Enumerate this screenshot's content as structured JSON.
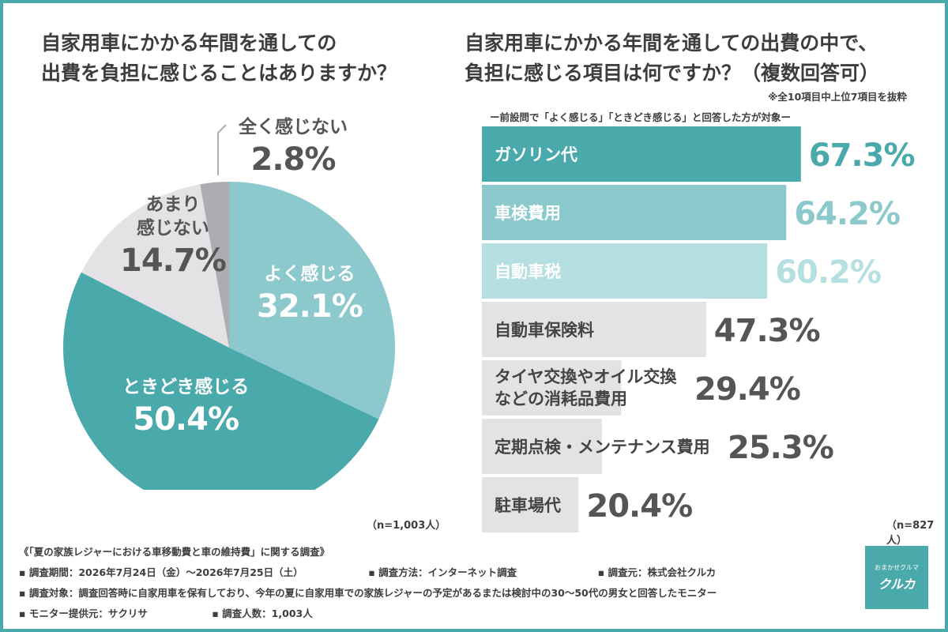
{
  "left_title": [
    "自家用車にかかる年間を通しての",
    "出費を負担に感じることはありますか？"
  ],
  "right_title": [
    "自家用車にかかる年間を通しての出費の中で、",
    "負担に感じる項目は何ですか？（複数回答可）"
  ],
  "note_top": "※全10項目中上位7項目を抜粋",
  "note_target": "ー前設問で「よく感じる」「ときどき感じる」と回答した方が対象ー",
  "colors": {
    "teal_dark": "#4aa9ab",
    "teal_mid": "#8cc9cc",
    "teal_light": "#b5dfe1",
    "gray_light": "#e4e2e5",
    "gray_mid": "#aeacb0",
    "frame": "#4aa9ab"
  },
  "chart_data": [
    {
      "type": "pie",
      "start": "12 o'clock, clockwise",
      "slices": [
        {
          "label": "よく感じる",
          "value": 32.1,
          "value_text": "32.1%",
          "color": "#8cc9cc"
        },
        {
          "label": "ときどき感じる",
          "value": 50.4,
          "value_text": "50.4%",
          "color": "#4aa9ab"
        },
        {
          "label_lines": [
            "あまり",
            "感じない"
          ],
          "value": 14.7,
          "value_text": "14.7%",
          "color": "#e4e2e5"
        },
        {
          "label": "全く感じない",
          "value": 2.8,
          "value_text": "2.8%",
          "color": "#aeacb0"
        }
      ],
      "sample": "（n=1,003人）"
    },
    {
      "type": "bar",
      "orientation": "horizontal",
      "xlim": [
        0,
        100
      ],
      "categories": [
        {
          "lines": [
            "ガソリン代"
          ],
          "value": 67.3,
          "value_text": "67.3%",
          "color": "#4aa9ab",
          "text_color": "#ffffff",
          "value_color": "#4aa9ab"
        },
        {
          "lines": [
            "車検費用"
          ],
          "value": 64.2,
          "value_text": "64.2%",
          "color": "#8cc9cc",
          "text_color": "#ffffff",
          "value_color": "#8cc9cc"
        },
        {
          "lines": [
            "自動車税"
          ],
          "value": 60.2,
          "value_text": "60.2%",
          "color": "#b5dfe1",
          "text_color": "#ffffff",
          "value_color": "#b5dfe1"
        },
        {
          "lines": [
            "自動車保険料"
          ],
          "value": 47.3,
          "value_text": "47.3%",
          "color": "#e4e2e5",
          "text_color": "#444444",
          "value_color": "#555555"
        },
        {
          "lines": [
            "タイヤ交換やオイル交換",
            "などの消耗品費用"
          ],
          "value": 29.4,
          "value_text": "29.4%",
          "color": "#e4e2e5",
          "text_color": "#444444",
          "value_color": "#555555"
        },
        {
          "lines": [
            "定期点検・メンテナンス費用"
          ],
          "value": 25.3,
          "value_text": "25.3%",
          "color": "#e4e2e5",
          "text_color": "#444444",
          "value_color": "#555555"
        },
        {
          "lines": [
            "駐車場代"
          ],
          "value": 20.4,
          "value_text": "20.4%",
          "color": "#e4e2e5",
          "text_color": "#444444",
          "value_color": "#555555"
        }
      ],
      "sample": "（n=827人）"
    }
  ],
  "footer": {
    "survey_title": "《「夏の家族レジャーにおける車移動費と車の維持費」に関する調査》",
    "period": "▪ 調査期間：2026年7月24日（金）〜2026年7月25日（土）",
    "method": "▪ 調査方法：インターネット調査",
    "source": "▪ 調査元：株式会社クルカ",
    "target": "▪ 調査対象：調査回答時に自家用車を保有しており、今年の夏に自家用車での家族レジャーの予定があるまたは検討中の30〜50代の男女と回答したモニター",
    "provider": "▪ モニター提供元：サクリサ",
    "count": "▪ 調査人数：1,003人"
  },
  "logo": {
    "small": "おまかせクルマ",
    "big": "クルカ",
    "icon": "car-logo-icon"
  }
}
